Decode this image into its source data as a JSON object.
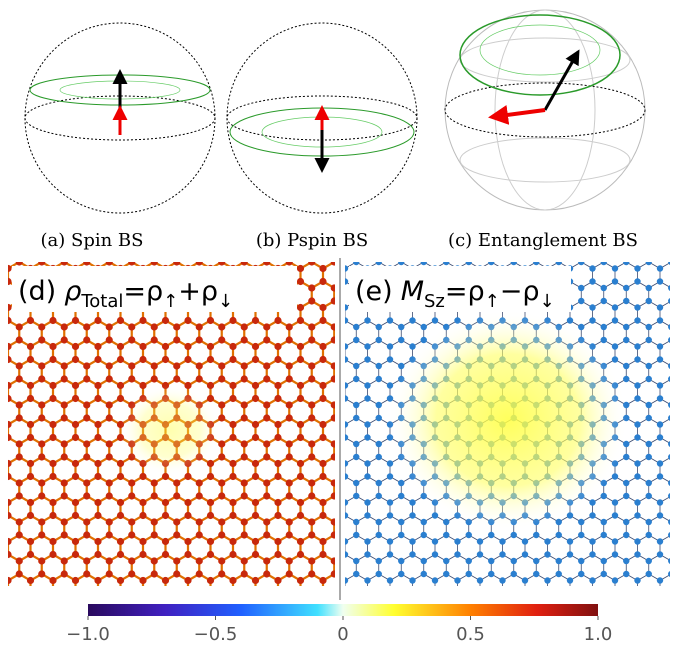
{
  "captions": [
    "(a) Spin BS",
    "(b) Pspin BS",
    "(c) Entanglement BS"
  ],
  "panels": [
    {
      "label": "(d)",
      "parts": [
        "ρ",
        "Total",
        "=ρ",
        "↑",
        "+ρ",
        "↓"
      ]
    },
    {
      "label": "(e)",
      "parts": [
        "M",
        "Sz",
        "=ρ",
        "↑",
        "−ρ",
        "↓"
      ]
    }
  ],
  "colorbar": {
    "lim": [
      -1,
      1
    ],
    "ticks": [
      {
        "value": -1,
        "label": "−1.0"
      },
      {
        "value": -0.5,
        "label": "−0.5"
      },
      0,
      0.5,
      {
        "value": 1,
        "label": "1.0"
      }
    ]
  }
}
